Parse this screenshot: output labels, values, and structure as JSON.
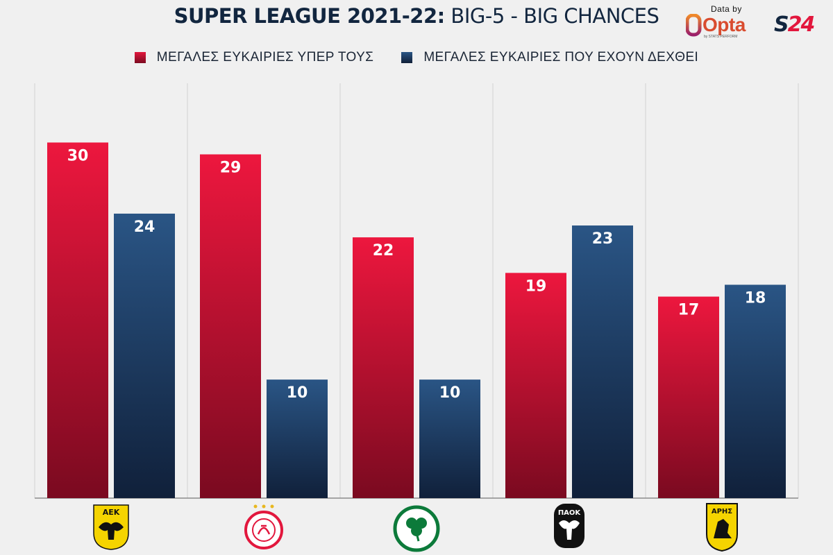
{
  "header": {
    "title_bold": "SUPER LEAGUE 2021-22:",
    "title_rest": " BIG-5 - BIG CHANCES",
    "data_by": "Data by",
    "opta": "Opta",
    "opta_sub": "by STATS PERFORM",
    "brand_s": "S",
    "brand_24": "24"
  },
  "legend": [
    {
      "label": "ΜΕΓΑΛΕΣ ΕΥΚΑΙΡΙΕΣ ΥΠΕΡ ΤΟΥΣ",
      "color": "#e2173d"
    },
    {
      "label": "ΜΕΓΑΛΕΣ ΕΥΚΑΙΡΙΕΣ ΠΟΥ ΕΧΟΥΝ ΔΕΧΘΕΙ",
      "color": "#1e3d63"
    }
  ],
  "colors": {
    "red_top": "#ed173e",
    "red_bottom": "#7a0a20",
    "blue_top": "#2a5585",
    "blue_bottom": "#10203a",
    "grid": "#d2d2d2",
    "axis": "#8a8a8a"
  },
  "chart_data": {
    "type": "bar",
    "title": "SUPER LEAGUE 2021-22: BIG-5 - BIG CHANCES",
    "categories": [
      "ΑΕΚ",
      "Ολυμπιακός",
      "Παναθηναϊκός",
      "ΠΑΟΚ",
      "Άρης"
    ],
    "series": [
      {
        "name": "ΜΕΓΑΛΕΣ ΕΥΚΑΙΡΙΕΣ ΥΠΕΡ ΤΟΥΣ",
        "values": [
          30,
          29,
          22,
          19,
          17
        ]
      },
      {
        "name": "ΜΕΓΑΛΕΣ ΕΥΚΑΙΡΙΕΣ ΠΟΥ ΕΧΟΥΝ ΔΕΧΘΕΙ",
        "values": [
          24,
          10,
          10,
          23,
          18
        ]
      }
    ],
    "ylim": [
      0,
      35
    ],
    "grid": "vertical separators",
    "legend_position": "top"
  },
  "logos": [
    {
      "team": "ΑΕΚ",
      "icon": "aek-crest-icon",
      "text": "ΑΕΚ",
      "bg": "#f5d400",
      "fg": "#111111"
    },
    {
      "team": "Ολυμπιακός",
      "icon": "olympiacos-crest-icon",
      "text": "",
      "bg": "#ffffff",
      "fg": "#e2173d"
    },
    {
      "team": "Παναθηναϊκός",
      "icon": "panathinaikos-crest-icon",
      "text": "",
      "bg": "#ffffff",
      "fg": "#0c7a3a"
    },
    {
      "team": "ΠΑΟΚ",
      "icon": "paok-crest-icon",
      "text": "ΠΑΟΚ",
      "bg": "#111111",
      "fg": "#ffffff"
    },
    {
      "team": "Άρης",
      "icon": "aris-crest-icon",
      "text": "ΑΡΗΣ",
      "bg": "#f5d400",
      "fg": "#111111"
    }
  ]
}
